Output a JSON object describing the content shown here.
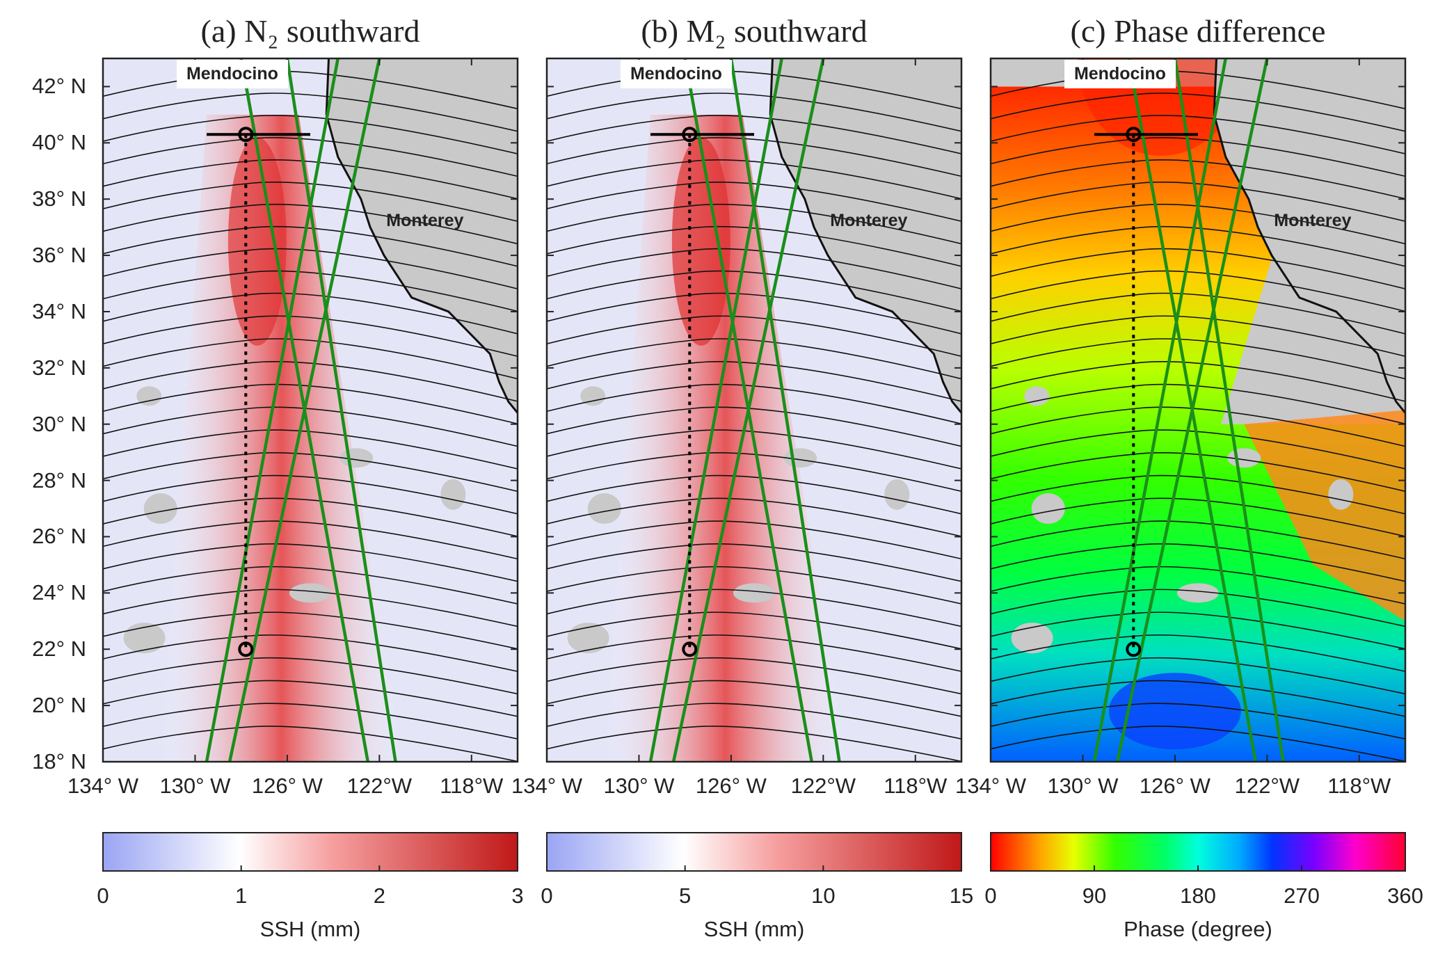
{
  "panels": [
    {
      "id": "a",
      "title": "(a) N₂ southward",
      "colorbar": {
        "ticks": [
          "0",
          "1",
          "2",
          "3"
        ],
        "label": "SSH (mm)",
        "colormap": "blue-white-red",
        "range": [
          0,
          3
        ]
      },
      "show_right_xtick_last": true
    },
    {
      "id": "b",
      "title": "(b) M₂ southward",
      "colorbar": {
        "ticks": [
          "0",
          "5",
          "10",
          "15"
        ],
        "label": "SSH (mm)",
        "colormap": "blue-white-red",
        "range": [
          0,
          15
        ]
      },
      "show_right_xtick_last": false
    },
    {
      "id": "c",
      "title": "(c) Phase difference",
      "colorbar": {
        "ticks": [
          "0",
          "90",
          "180",
          "270",
          "360"
        ],
        "label": "Phase (degree)",
        "colormap": "hsv",
        "range": [
          0,
          360
        ]
      },
      "show_right_xtick_last": true
    }
  ],
  "axes": {
    "y_ticks": [
      "42° N",
      "40° N",
      "38° N",
      "36° N",
      "34° N",
      "32° N",
      "30° N",
      "28° N",
      "26° N",
      "24° N",
      "22° N",
      "20° N",
      "18° N"
    ],
    "y_values": [
      42,
      40,
      38,
      36,
      34,
      32,
      30,
      28,
      26,
      24,
      22,
      20,
      18
    ],
    "x_ticks": [
      "134° W",
      "130° W",
      "126° W",
      "122°W",
      "118°W"
    ],
    "x_values": [
      -134,
      -130,
      -126,
      -122,
      -118
    ],
    "lon_range": [
      -134,
      -116
    ],
    "lat_range": [
      18,
      43
    ]
  },
  "labels": {
    "mendocino": "Mendocino",
    "monterey": "Monterey"
  },
  "colors": {
    "land": "#c9c9c9",
    "beam": "#1a8f1a",
    "contour": "#111111",
    "coast": "#111111",
    "ssh_low": "#9aa5f3",
    "ssh_mid": "#ffffff",
    "ssh_high": "#c01818"
  },
  "map_features": {
    "source_point": [
      -127.8,
      40.3
    ],
    "end_point": [
      -127.8,
      22.0
    ],
    "beam_lines": [
      {
        "start": [
          -128.0,
          43
        ],
        "end": [
          -122.5,
          18
        ]
      },
      {
        "start": [
          -126.0,
          43
        ],
        "end": [
          -121.3,
          18
        ]
      },
      {
        "start": [
          -123.8,
          43
        ],
        "end": [
          -129.5,
          18
        ]
      },
      {
        "start": [
          -122.0,
          43
        ],
        "end": [
          -128.5,
          18
        ]
      }
    ]
  }
}
